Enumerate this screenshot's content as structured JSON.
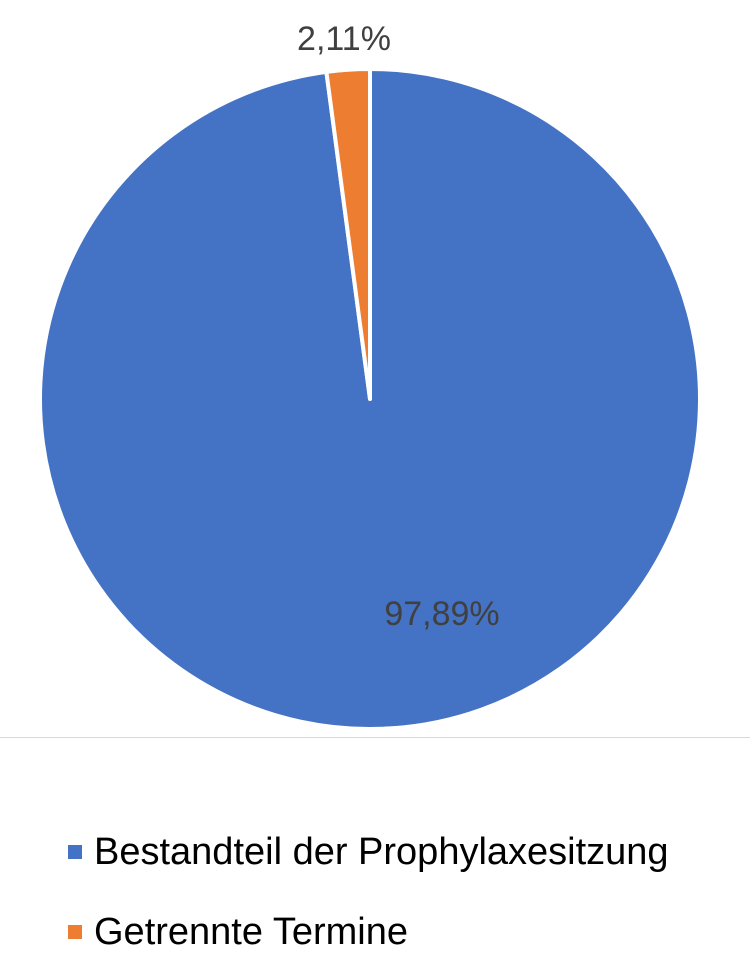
{
  "chart_data": {
    "type": "pie",
    "start_angle_deg": 0,
    "direction": "clockwise",
    "series": [
      {
        "name": "Bestandteil der Prophylaxesitzung",
        "value": 97.89,
        "label": "97,89%",
        "color": "#4472C4"
      },
      {
        "name": "Getrennte Termine",
        "value": 2.11,
        "label": "2,11%",
        "color": "#ED7D31"
      }
    ],
    "legend_position": "bottom"
  }
}
